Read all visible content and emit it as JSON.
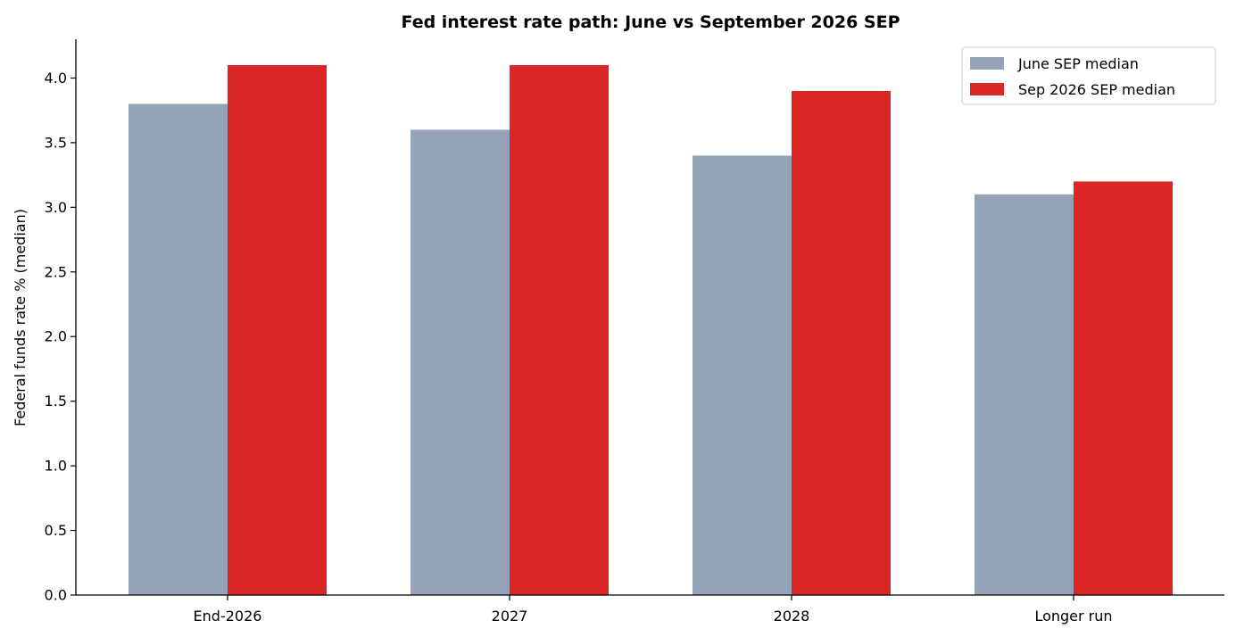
{
  "chart_data": {
    "type": "bar",
    "title": "Fed interest rate path: June vs September 2026 SEP",
    "xlabel": "",
    "ylabel": "Federal funds rate % (median)",
    "categories": [
      "End-2026",
      "2027",
      "2028",
      "Longer run"
    ],
    "series": [
      {
        "name": "June SEP median",
        "values": [
          3.8,
          3.6,
          3.4,
          3.1
        ],
        "color": "#94a3b8"
      },
      {
        "name": "Sep 2026 SEP median",
        "values": [
          4.1,
          4.1,
          3.9,
          3.2
        ],
        "color": "#dc2626"
      }
    ],
    "ylim": [
      0,
      4.3
    ],
    "yticks": [
      "0.0",
      "0.5",
      "1.0",
      "1.5",
      "2.0",
      "2.5",
      "3.0",
      "3.5",
      "4.0"
    ],
    "grid": false,
    "legend_position": "top-right"
  }
}
